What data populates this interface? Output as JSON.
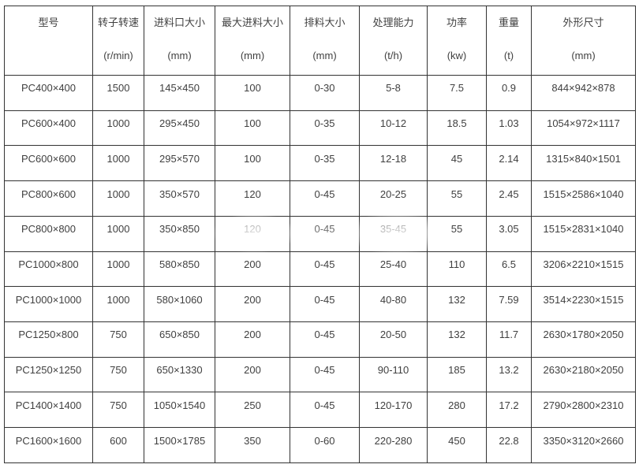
{
  "colors": {
    "background": "#ffffff",
    "border": "#333333",
    "text": "#404040"
  },
  "chart_data": {
    "type": "table",
    "columns": [
      {
        "label": "型号",
        "unit": ""
      },
      {
        "label": "转子转速",
        "unit": "(r/min)"
      },
      {
        "label": "进料口大小",
        "unit": "(mm)"
      },
      {
        "label": "最大进料大小",
        "unit": "(mm)"
      },
      {
        "label": "排料大小",
        "unit": "(mm)"
      },
      {
        "label": "处理能力",
        "unit": "(t/h)"
      },
      {
        "label": "功率",
        "unit": "(kw)"
      },
      {
        "label": "重量",
        "unit": "(t)"
      },
      {
        "label": "外形尺寸",
        "unit": "(mm)"
      }
    ],
    "rows": [
      [
        "PC400×400",
        "1500",
        "145×450",
        "100",
        "0-30",
        "5-8",
        "7.5",
        "0.9",
        "844×942×878"
      ],
      [
        "PC600×400",
        "1000",
        "295×450",
        "100",
        "0-35",
        "10-12",
        "18.5",
        "1.03",
        "1054×972×1117"
      ],
      [
        "PC600×600",
        "1000",
        "295×570",
        "100",
        "0-35",
        "12-18",
        "45",
        "2.14",
        "1315×840×1501"
      ],
      [
        "PC800×600",
        "1000",
        "350×570",
        "120",
        "0-45",
        "20-25",
        "55",
        "2.45",
        "1515×2586×1040"
      ],
      [
        "PC800×800",
        "1000",
        "350×850",
        "120",
        "0-45",
        "35-45",
        "55",
        "3.05",
        "1515×2831×1040"
      ],
      [
        "PC1000×800",
        "1000",
        "580×850",
        "200",
        "0-45",
        "25-40",
        "110",
        "6.5",
        "3206×2210×1515"
      ],
      [
        "PC1000×1000",
        "1000",
        "580×1060",
        "200",
        "0-45",
        "40-80",
        "132",
        "7.59",
        "3514×2230×1515"
      ],
      [
        "PC1250×800",
        "750",
        "650×850",
        "200",
        "0-45",
        "20-50",
        "132",
        "11.7",
        "2630×1780×2050"
      ],
      [
        "PC1250×1250",
        "750",
        "650×1330",
        "200",
        "0-45",
        "90-110",
        "185",
        "13.2",
        "2630×2180×2050"
      ],
      [
        "PC1400×1400",
        "750",
        "1050×1540",
        "250",
        "0-45",
        "120-170",
        "280",
        "17.2",
        "2790×2800×2310"
      ],
      [
        "PC1600×1600",
        "600",
        "1500×1785",
        "350",
        "0-60",
        "220-280",
        "450",
        "22.8",
        "3350×3120×2660"
      ]
    ]
  }
}
